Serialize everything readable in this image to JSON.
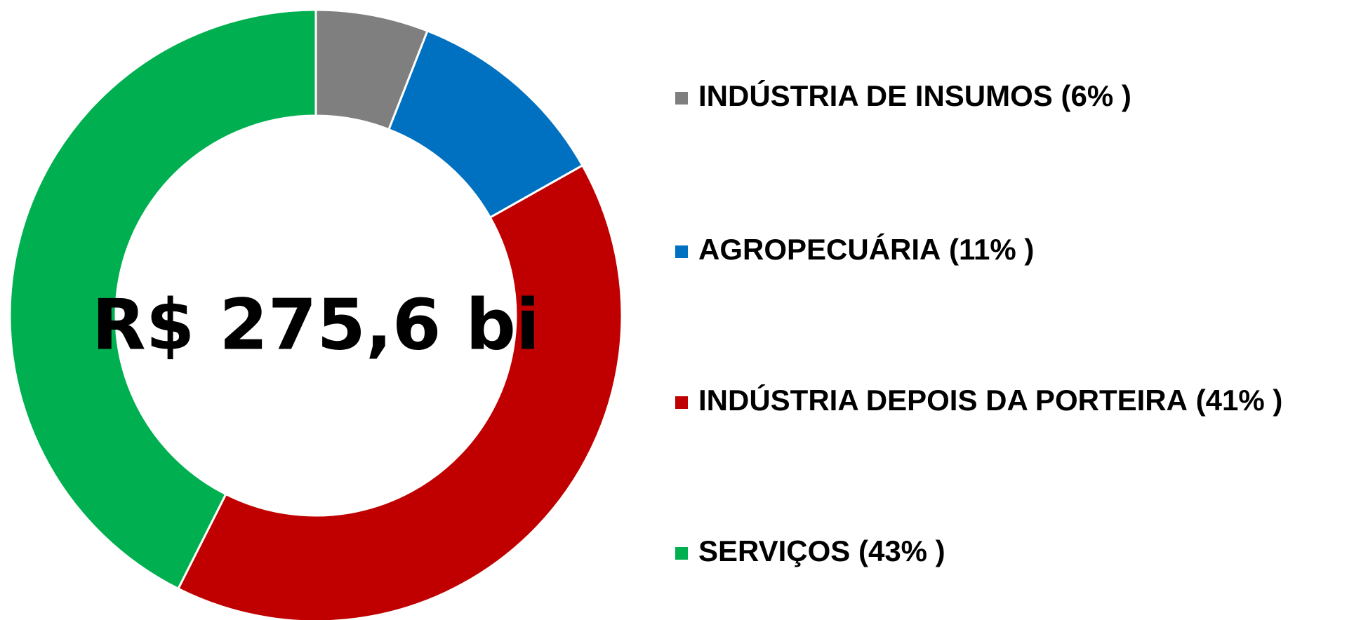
{
  "chart_data": {
    "type": "donut",
    "center_label": "R$ 275,6 bi",
    "categories": [
      "INDÚSTRIA DE INSUMOS",
      "AGROPECUÁRIA",
      "INDÚSTRIA DEPOIS DA PORTEIRA",
      "SERVIÇOS"
    ],
    "values": [
      6,
      11,
      41,
      43
    ],
    "value_labels": [
      "(6% )",
      "(11% )",
      "(41% )",
      "(43% )"
    ],
    "colors": [
      "#7f7f7f",
      "#0070c0",
      "#c00000",
      "#00b050"
    ],
    "legend": "right"
  }
}
